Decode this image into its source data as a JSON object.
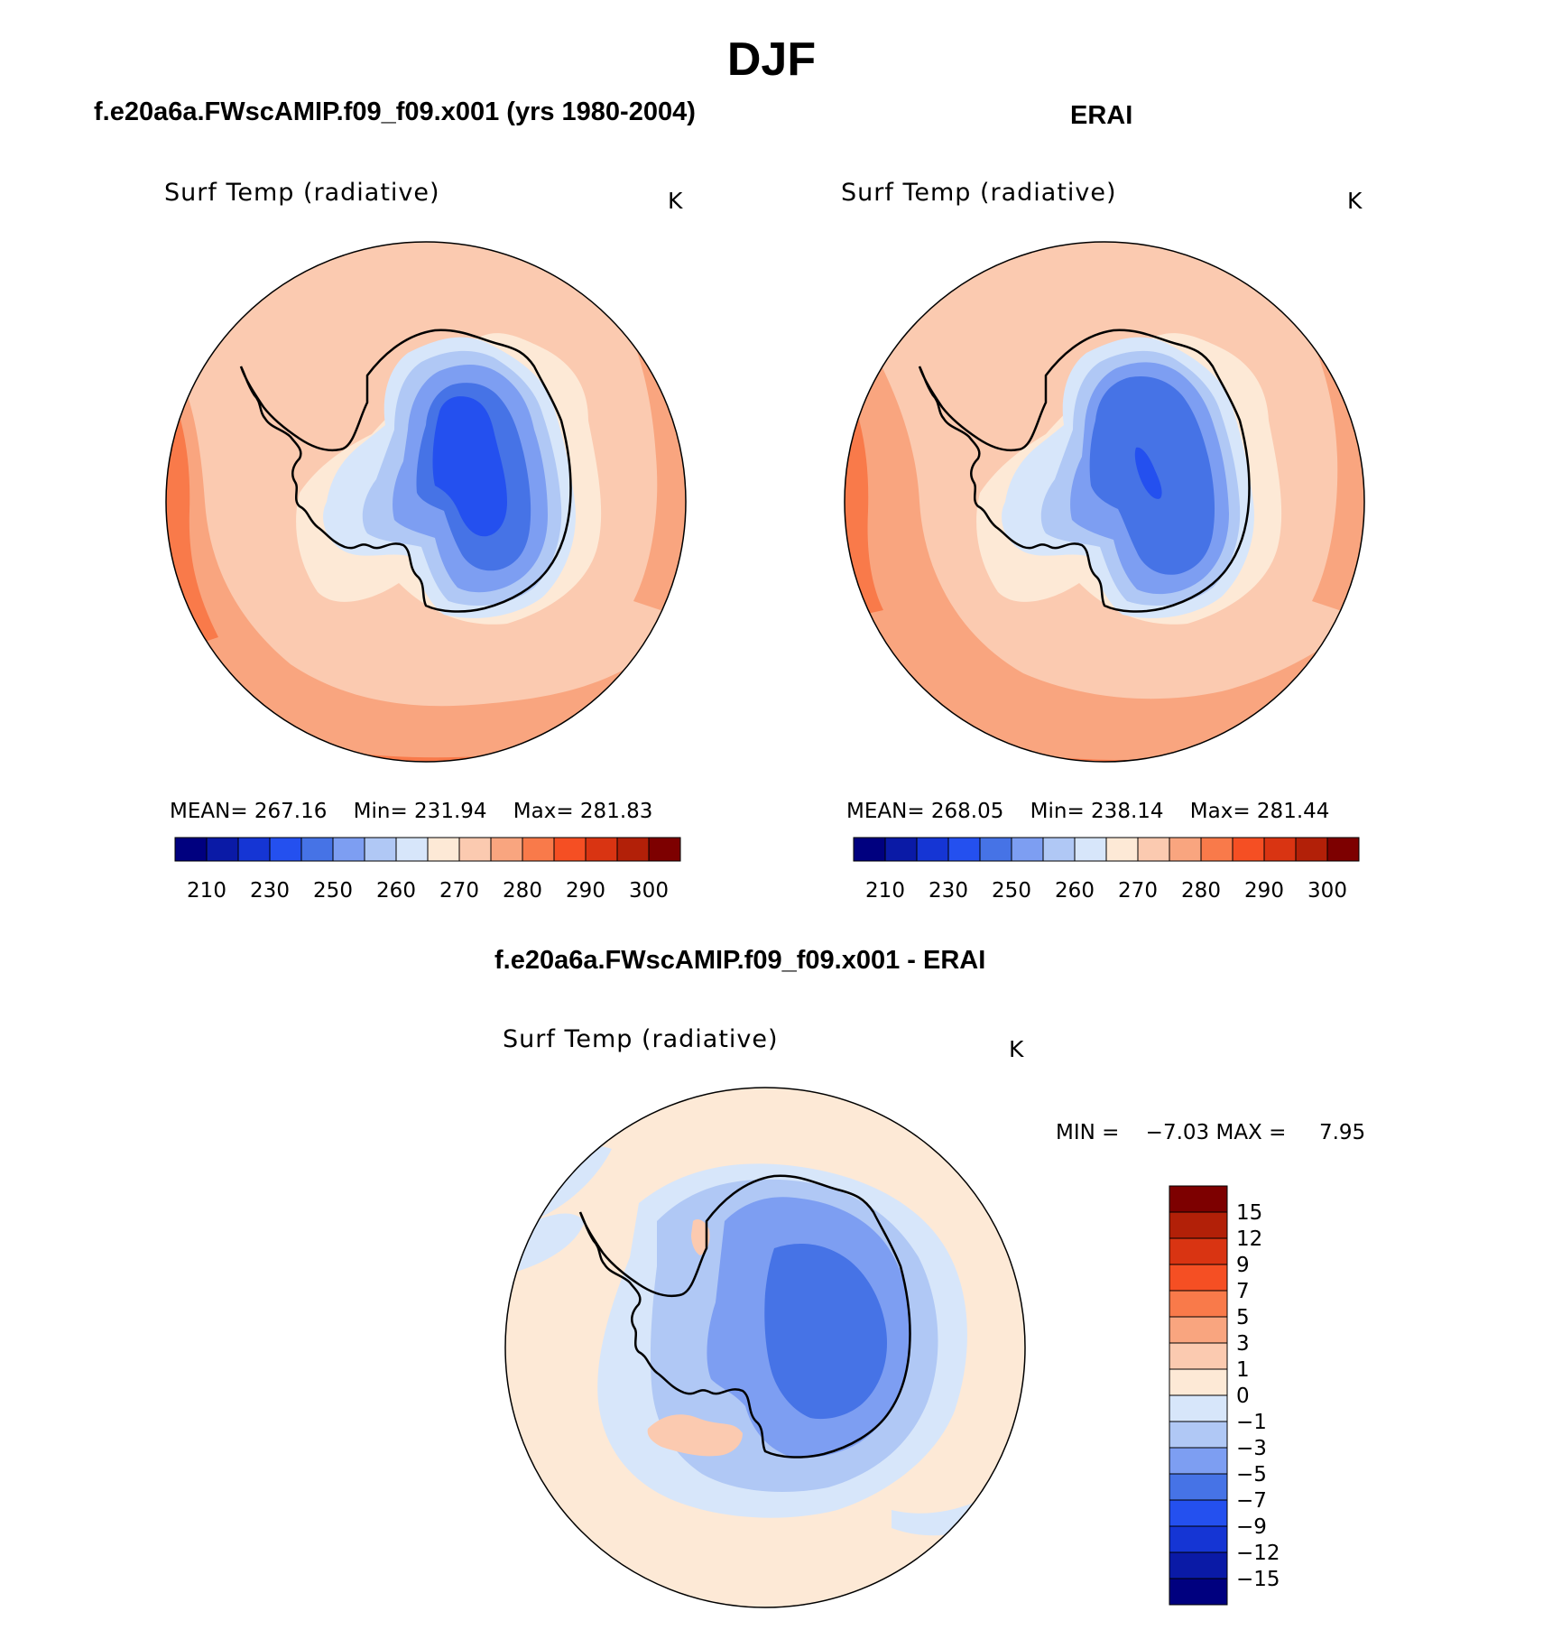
{
  "figure": {
    "title": "DJF"
  },
  "panels": [
    {
      "id": "model",
      "title": "f.e20a6a.FWscAMIP.f09_f09.x001 (yrs 1980-2004)",
      "variable": "Surf Temp (radiative)",
      "units": "K",
      "stats": {
        "mean_label": "MEAN=",
        "mean": "267.16",
        "min_label": "Min=",
        "min": "231.94",
        "max_label": "Max=",
        "max": "281.83"
      }
    },
    {
      "id": "obs",
      "title": "ERAI",
      "variable": "Surf Temp (radiative)",
      "units": "K",
      "stats": {
        "mean_label": "MEAN=",
        "mean": "268.05",
        "min_label": "Min=",
        "min": "238.14",
        "max_label": "Max=",
        "max": "281.44"
      }
    },
    {
      "id": "diff",
      "title": "f.e20a6a.FWscAMIP.f09_f09.x001 - ERAI",
      "variable": "Surf Temp (radiative)",
      "units": "K",
      "stats": {
        "min_label": "MIN =",
        "min": "−7.03",
        "max_label": "MAX =",
        "max": "7.95"
      }
    }
  ],
  "colorbars": {
    "abs_colors": [
      "#00007f",
      "#0a1aa6",
      "#1535d4",
      "#2450ef",
      "#4673e6",
      "#7d9ef2",
      "#b0c8f5",
      "#d7e6fa",
      "#fde9d6",
      "#fbcab0",
      "#f9a57f",
      "#f97a4a",
      "#f54f23",
      "#d93412",
      "#b22008",
      "#7d0000"
    ],
    "abs_tick_labels": [
      "210",
      "230",
      "250",
      "260",
      "270",
      "280",
      "290",
      "300"
    ],
    "diff_colors": [
      "#7d0000",
      "#b22008",
      "#d93412",
      "#f54f23",
      "#f97a4a",
      "#f9a57f",
      "#fbcab0",
      "#fde9d6",
      "#d7e6fa",
      "#b0c8f5",
      "#7d9ef2",
      "#4673e6",
      "#2450ef",
      "#1535d4",
      "#0a1aa6",
      "#00007f"
    ],
    "diff_tick_labels": [
      "15",
      "12",
      "9",
      "7",
      "5",
      "3",
      "1",
      "0",
      "−1",
      "−3",
      "−5",
      "−7",
      "−9",
      "−12",
      "−15"
    ]
  },
  "colors": {
    "ocean_warm": "#fbcab0",
    "ocean_warmer": "#f9a57f",
    "ocean_hot": "#f97a4a",
    "ice_cold": "#2450ef",
    "ice_mid": "#4673e6",
    "diff_background": "#fde9d6"
  }
}
